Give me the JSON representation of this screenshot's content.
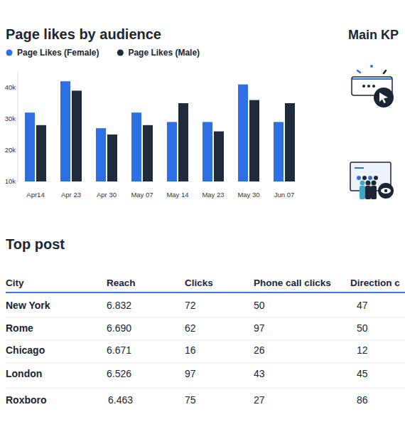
{
  "chart_data": {
    "type": "bar",
    "title": "Page likes by audience",
    "categories": [
      "Apr14",
      "Apr 23",
      "Apr 30",
      "May 07",
      "May 14",
      "May 23",
      "May 30",
      "Jun 07"
    ],
    "series": [
      {
        "name": "Page Likes (Female)",
        "color": "#2f6fe4",
        "values": [
          32000,
          42000,
          27000,
          32000,
          29000,
          29000,
          41000,
          29000
        ]
      },
      {
        "name": "Page Likes (Male)",
        "color": "#1f2a3c",
        "values": [
          28000,
          39000,
          25000,
          28000,
          35000,
          26000,
          36000,
          35000
        ]
      }
    ],
    "ylim": [
      10000,
      45000
    ],
    "yticks": [
      {
        "value": 10000,
        "label": "10k"
      },
      {
        "value": 20000,
        "label": "20k"
      },
      {
        "value": 30000,
        "label": "30k"
      },
      {
        "value": 40000,
        "label": "40k"
      }
    ],
    "grid": false,
    "legend": "top",
    "data_labels": false
  },
  "main_kpi": {
    "title": "Main KP"
  },
  "top_post": {
    "title": "Top post",
    "columns": [
      "City",
      "Reach",
      "Clicks",
      "Phone call clicks",
      "Direction c"
    ],
    "rows": [
      [
        "New York",
        "6.832",
        72,
        50,
        47
      ],
      [
        "Rome",
        "6.690",
        62,
        97,
        50
      ],
      [
        "Chicago",
        "6.671",
        16,
        26,
        12
      ],
      [
        "London",
        "6.526",
        97,
        43,
        45
      ],
      [
        "Roxboro",
        "6.463",
        75,
        27,
        86
      ]
    ]
  }
}
